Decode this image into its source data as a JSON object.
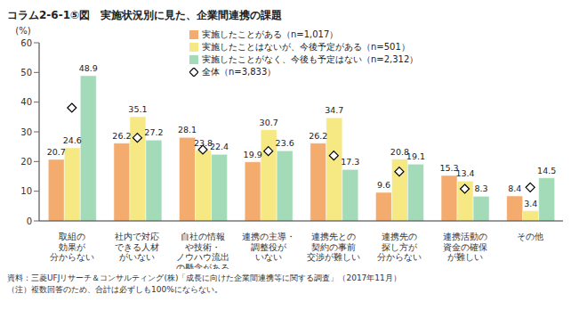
{
  "chart_data": {
    "type": "bar",
    "title": "コラム2-6-1⑤図　実施状況別に見た、企業間連携の課題",
    "y_label": "(%)",
    "categories": [
      "取組の\n効果が\n分からない",
      "社内で対応\nできる人材\nがいない",
      "自社の情報\nや技術・\nノウハウ流出\nの懸念がある",
      "連携の主導・\n調整役が\nいない",
      "連携先との\n契約の事前\n交渉が難しい",
      "連携先の\n探し方が\n分からない",
      "連携活動の\n資金の確保\nが難しい",
      "その他"
    ],
    "series": [
      {
        "name": "実施したことがある（n=1,017）",
        "color": "#f4ab6e",
        "type": "bar",
        "data_labels": true,
        "values": [
          20.7,
          26.2,
          28.1,
          19.9,
          26.2,
          9.6,
          15.3,
          8.4
        ]
      },
      {
        "name": "実施したことはないが、今後予定がある（n=501）",
        "color": "#f6e882",
        "type": "bar",
        "data_labels": true,
        "values": [
          24.6,
          35.1,
          23.8,
          30.7,
          34.7,
          20.8,
          13.4,
          3.4
        ]
      },
      {
        "name": "実施したことがなく、今後も予定はない（n=2,312）",
        "color": "#a3dbb8",
        "type": "bar",
        "data_labels": true,
        "values": [
          48.9,
          27.2,
          22.4,
          23.6,
          17.3,
          19.1,
          8.3,
          14.5
        ]
      },
      {
        "name": "全体（n=3,833）",
        "color": "#000000",
        "type": "scatter",
        "marker": "diamond",
        "data_labels": false,
        "values": [
          38.1,
          28.0,
          24.0,
          23.5,
          22.0,
          16.6,
          10.8,
          11.3
        ]
      }
    ],
    "ylim": [
      0,
      60
    ],
    "yticks": [
      0,
      10,
      20,
      30,
      40,
      50,
      60
    ],
    "grid": false,
    "legend": "top",
    "notes": [
      "資料：三菱UFJリサーチ＆コンサルティング(株)「成長に向けた企業間連携等に関する調査」（2017年11月）",
      "（注）複数回答のため、合計は必ずしも100%にならない。"
    ]
  }
}
